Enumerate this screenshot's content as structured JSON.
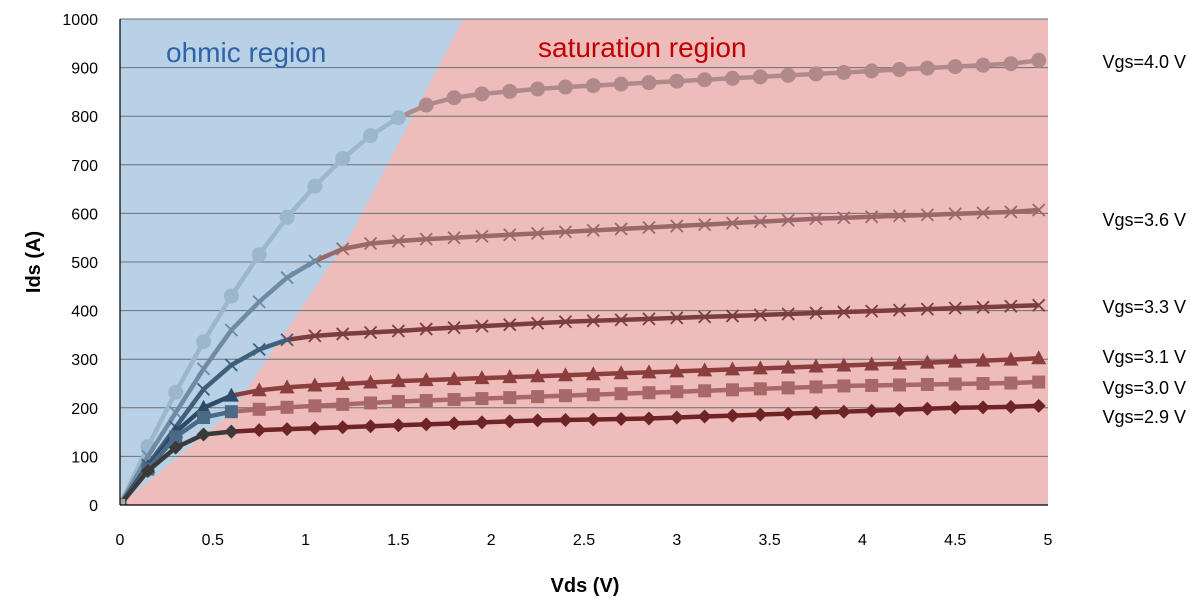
{
  "chart_data": {
    "type": "line",
    "xlabel": "Vds (V)",
    "ylabel": "Ids (A)",
    "xlim": [
      0,
      5
    ],
    "ylim": [
      0,
      1000
    ],
    "x_ticks": [
      "0",
      "0.5",
      "1",
      "1.5",
      "2",
      "2.5",
      "3",
      "3.5",
      "4",
      "4.5",
      "5"
    ],
    "y_ticks": [
      "0",
      "100",
      "200",
      "300",
      "400",
      "500",
      "600",
      "700",
      "800",
      "900",
      "1000"
    ],
    "grid": "horizontal",
    "regions": [
      {
        "label": "ohmic region",
        "color": "#b8d1e6",
        "text_color": "#2f63a8"
      },
      {
        "label": "saturation region",
        "color": "#efbcbc",
        "text_color": "#c00000"
      }
    ],
    "x": [
      0,
      0.15,
      0.3,
      0.45,
      0.6,
      0.75,
      0.9,
      1.05,
      1.2,
      1.35,
      1.5,
      1.65,
      1.8,
      1.95,
      2.1,
      2.25,
      2.4,
      2.55,
      2.7,
      2.85,
      3.0,
      3.15,
      3.3,
      3.45,
      3.6,
      3.75,
      3.9,
      4.05,
      4.2,
      4.35,
      4.5,
      4.65,
      4.8,
      4.95
    ],
    "series": [
      {
        "name": "Vgs=4.0 V",
        "marker": "circle",
        "color": "#b08a8a",
        "ohmic_color": "#9cb6cc",
        "values": [
          0,
          120,
          232,
          336,
          430,
          515,
          592,
          656,
          713,
          760,
          797,
          823,
          838,
          846,
          851,
          856,
          860,
          863,
          866,
          869,
          872,
          875,
          878,
          881,
          884,
          887,
          890,
          893,
          896,
          899,
          902,
          905,
          908,
          915
        ]
      },
      {
        "name": "Vgs=3.6 V",
        "marker": "x",
        "color": "#9a6868",
        "ohmic_color": "#6f8ba3",
        "values": [
          0,
          100,
          190,
          280,
          360,
          418,
          468,
          502,
          527,
          538,
          543,
          547,
          550,
          553,
          556,
          559,
          562,
          565,
          568,
          571,
          574,
          577,
          580,
          583,
          586,
          589,
          591,
          593,
          595,
          597,
          599,
          601,
          603,
          607
        ]
      },
      {
        "name": "Vgs=3.3 V",
        "marker": "x",
        "color": "#7a3e3e",
        "ohmic_color": "#3f5f7a",
        "values": [
          0,
          82,
          160,
          238,
          288,
          320,
          340,
          348,
          352,
          355,
          358,
          362,
          365,
          368,
          371,
          374,
          377,
          379,
          381,
          383,
          385,
          387,
          389,
          391,
          393,
          395,
          397,
          399,
          401,
          403,
          405,
          407,
          409,
          411
        ]
      },
      {
        "name": "Vgs=3.1 V",
        "marker": "triangle",
        "color": "#8a3e3e",
        "ohmic_color": "#2d4a66",
        "values": [
          0,
          78,
          150,
          200,
          225,
          236,
          242,
          246,
          249,
          252,
          255,
          257,
          259,
          261,
          263,
          265,
          267,
          269,
          271,
          273,
          275,
          277,
          279,
          281,
          283,
          285,
          287,
          289,
          291,
          293,
          295,
          297,
          299,
          302
        ]
      },
      {
        "name": "Vgs=3.0 V",
        "marker": "square",
        "color": "#a86868",
        "ohmic_color": "#4a6a85",
        "values": [
          0,
          74,
          140,
          180,
          192,
          197,
          201,
          204,
          207,
          210,
          213,
          215,
          217,
          219,
          221,
          223,
          225,
          227,
          229,
          231,
          233,
          235,
          237,
          239,
          241,
          243,
          245,
          246,
          247,
          248,
          249,
          250,
          251,
          253
        ]
      },
      {
        "name": "Vgs=2.9 V",
        "marker": "diamond",
        "color": "#6e2424",
        "ohmic_color": "#3a3a3a",
        "values": [
          0,
          70,
          118,
          145,
          151,
          154,
          156,
          158,
          160,
          162,
          164,
          166,
          168,
          170,
          172,
          174,
          175,
          176,
          177,
          178,
          180,
          182,
          184,
          186,
          188,
          190,
          192,
          194,
          196,
          198,
          200,
          201,
          202,
          204
        ]
      }
    ]
  }
}
